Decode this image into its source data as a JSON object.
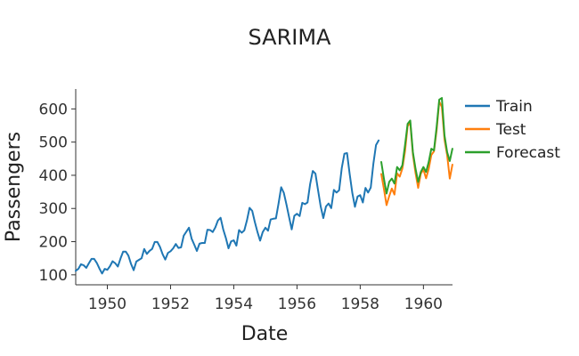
{
  "chart_data": {
    "type": "line",
    "title": "SARIMA",
    "xlabel": "Date",
    "ylabel": "Passengers",
    "xlim": [
      1949.0,
      1960.92
    ],
    "ylim": [
      70,
      660
    ],
    "x_ticks": [
      1950,
      1952,
      1954,
      1956,
      1958,
      1960
    ],
    "y_ticks": [
      100,
      200,
      300,
      400,
      500,
      600
    ],
    "grid": false,
    "legend_position": "right",
    "series": [
      {
        "name": "Train",
        "color": "#1f77b4",
        "x_start": "1949-01",
        "x_step": "1 month",
        "values": [
          112,
          118,
          132,
          129,
          121,
          135,
          148,
          148,
          136,
          119,
          104,
          118,
          115,
          126,
          141,
          135,
          125,
          149,
          170,
          170,
          158,
          133,
          114,
          140,
          145,
          150,
          178,
          163,
          172,
          178,
          199,
          199,
          184,
          162,
          146,
          166,
          171,
          180,
          193,
          181,
          183,
          218,
          230,
          242,
          209,
          191,
          172,
          194,
          196,
          196,
          236,
          235,
          229,
          243,
          264,
          272,
          237,
          211,
          180,
          201,
          204,
          188,
          235,
          227,
          234,
          264,
          302,
          293,
          259,
          229,
          203,
          229,
          242,
          233,
          267,
          269,
          270,
          315,
          364,
          347,
          312,
          274,
          237,
          278,
          284,
          277,
          317,
          313,
          318,
          374,
          413,
          405,
          355,
          306,
          271,
          306,
          315,
          301,
          356,
          348,
          355,
          422,
          465,
          467,
          404,
          347,
          305,
          336,
          340,
          318,
          362,
          348,
          363,
          435,
          491,
          505
        ]
      },
      {
        "name": "Test",
        "color": "#ff7f0e",
        "x_start": "1958-09",
        "x_step": "1 month",
        "values": [
          404,
          359,
          310,
          337,
          360,
          342,
          406,
          396,
          420,
          472,
          548,
          559,
          463,
          407,
          362,
          405,
          417,
          391,
          419,
          461,
          472,
          535,
          622,
          606,
          508,
          461,
          390,
          432
        ]
      },
      {
        "name": "Forecast",
        "color": "#2ca02c",
        "x_start": "1958-09",
        "x_step": "1 month",
        "values": [
          440,
          390,
          345,
          380,
          390,
          375,
          425,
          415,
          430,
          490,
          555,
          565,
          470,
          420,
          380,
          410,
          425,
          410,
          440,
          480,
          475,
          545,
          628,
          633,
          520,
          470,
          443,
          480
        ]
      }
    ]
  }
}
